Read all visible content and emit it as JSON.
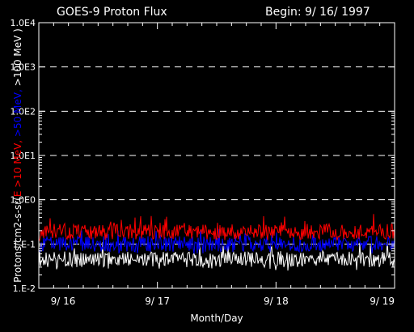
{
  "chart_data": {
    "type": "line",
    "title": "GOES-9 Proton Flux",
    "begin_label": "Begin: 9/ 16/ 1997",
    "xlabel": "Month/Day",
    "ylabel_parts": [
      {
        "text": "Protons/cm2-s-sr(",
        "color": "#ffffff"
      },
      {
        "text": "E >10 MeV, ",
        "color": "#ff0000"
      },
      {
        "text": ">50 MeV, ",
        "color": "#0000ff"
      },
      {
        "text": ">100 MeV )",
        "color": "#ffffff"
      }
    ],
    "y_scale": "log",
    "ylim": [
      0.01,
      10000
    ],
    "xlim": [
      0,
      3
    ],
    "y_ticks": [
      {
        "value": 0.01,
        "label": "1.E-2"
      },
      {
        "value": 0.1,
        "label": "1.E-1"
      },
      {
        "value": 1,
        "label": "1.0E0"
      },
      {
        "value": 10,
        "label": "1.0E1"
      },
      {
        "value": 100,
        "label": "1.0E2"
      },
      {
        "value": 1000,
        "label": "1.0E3"
      },
      {
        "value": 10000,
        "label": "1.0E4"
      }
    ],
    "x_ticks": [
      {
        "value": 0,
        "label": "9/ 16"
      },
      {
        "value": 1,
        "label": "9/ 17"
      },
      {
        "value": 2,
        "label": "9/ 18"
      },
      {
        "value": 3,
        "label": "9/ 19"
      }
    ],
    "grid": "dashed horizontal at decades",
    "series": [
      {
        "color": "#ffffff",
        "typical": 0.045,
        "min": 0.025,
        "max": 0.12
      },
      {
        "color": "#0000ff",
        "typical": 0.1,
        "min": 0.06,
        "max": 0.22
      },
      {
        "color": "#ff0000",
        "typical": 0.19,
        "min": 0.12,
        "max": 0.5
      }
    ]
  }
}
